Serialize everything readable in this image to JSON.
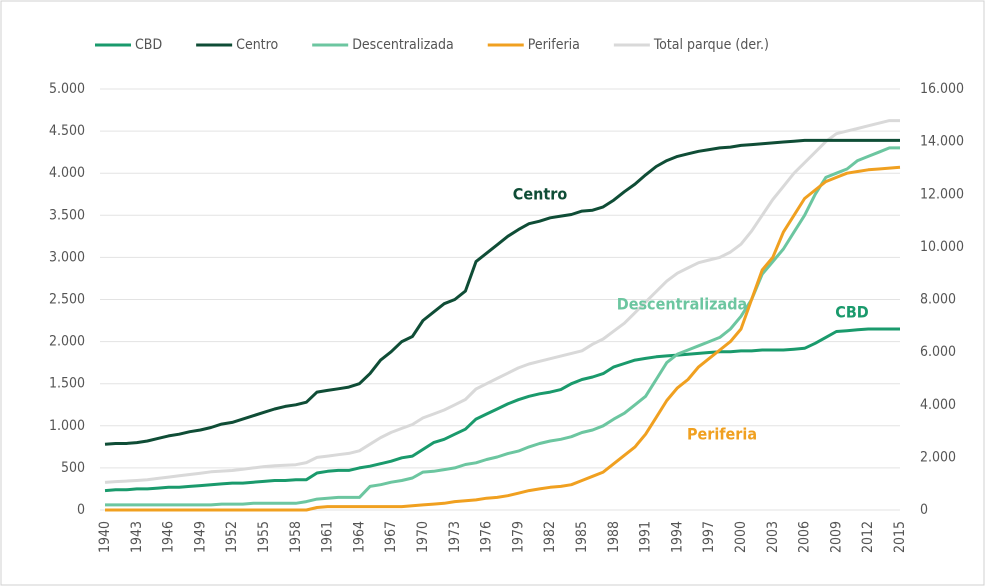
{
  "chart_data": {
    "type": "line",
    "x": [
      1940,
      1941,
      1942,
      1943,
      1944,
      1945,
      1946,
      1947,
      1948,
      1949,
      1950,
      1951,
      1952,
      1953,
      1954,
      1955,
      1956,
      1957,
      1958,
      1959,
      1960,
      1961,
      1962,
      1963,
      1964,
      1965,
      1966,
      1967,
      1968,
      1969,
      1970,
      1971,
      1972,
      1973,
      1974,
      1975,
      1976,
      1977,
      1978,
      1979,
      1980,
      1981,
      1982,
      1983,
      1984,
      1985,
      1986,
      1987,
      1988,
      1989,
      1990,
      1991,
      1992,
      1993,
      1994,
      1995,
      1996,
      1997,
      1998,
      1999,
      2000,
      2001,
      2002,
      2003,
      2004,
      2005,
      2006,
      2007,
      2008,
      2009,
      2010,
      2011,
      2012,
      2013,
      2014,
      2015
    ],
    "xlim": [
      1940,
      2015
    ],
    "xticks": [
      1940,
      1943,
      1946,
      1949,
      1952,
      1955,
      1958,
      1961,
      1964,
      1967,
      1970,
      1973,
      1976,
      1979,
      1982,
      1985,
      1988,
      1991,
      1994,
      1997,
      2000,
      2003,
      2006,
      2009,
      2012,
      2015
    ],
    "ylim": [
      0,
      5000
    ],
    "yticks": [
      0,
      500,
      {
        "value": 1000,
        "label": "1.000"
      },
      {
        "value": 1500,
        "label": "1.500"
      },
      {
        "value": 2000,
        "label": "2.000"
      },
      {
        "value": 2500,
        "label": "2.500"
      },
      {
        "value": 3000,
        "label": "3.000"
      },
      {
        "value": 3500,
        "label": "3.500"
      },
      {
        "value": 4000,
        "label": "4.000"
      },
      {
        "value": 4500,
        "label": "4.500"
      },
      {
        "value": 5000,
        "label": "5.000"
      }
    ],
    "y2lim": [
      0,
      16000
    ],
    "y2ticks": [
      0,
      {
        "value": 2000,
        "label": "2.000"
      },
      {
        "value": 4000,
        "label": "4.000"
      },
      {
        "value": 6000,
        "label": "6.000"
      },
      {
        "value": 8000,
        "label": "8.000"
      },
      {
        "value": 10000,
        "label": "10.000"
      },
      {
        "value": 12000,
        "label": "12.000"
      },
      {
        "value": 14000,
        "label": "14.000"
      },
      {
        "value": 16000,
        "label": "16.000"
      }
    ],
    "grid": true,
    "legend": "top",
    "series": [
      {
        "name": "CBD",
        "color": "#1a9a6c",
        "values": [
          230,
          240,
          240,
          250,
          250,
          260,
          270,
          270,
          280,
          290,
          300,
          310,
          320,
          320,
          330,
          340,
          350,
          350,
          360,
          360,
          440,
          460,
          470,
          470,
          500,
          520,
          550,
          580,
          620,
          640,
          720,
          800,
          840,
          900,
          960,
          1080,
          1140,
          1200,
          1260,
          1310,
          1350,
          1380,
          1400,
          1430,
          1500,
          1550,
          1580,
          1620,
          1700,
          1740,
          1780,
          1800,
          1820,
          1830,
          1840,
          1850,
          1860,
          1870,
          1880,
          1880,
          1890,
          1890,
          1900,
          1900,
          1900,
          1910,
          1920,
          1980,
          2050,
          2120,
          2130,
          2140,
          2150,
          2150,
          2150,
          2150
        ]
      },
      {
        "name": "Centro",
        "color": "#0f4d36",
        "values": [
          780,
          790,
          790,
          800,
          820,
          850,
          880,
          900,
          930,
          950,
          980,
          1020,
          1040,
          1080,
          1120,
          1160,
          1200,
          1230,
          1250,
          1280,
          1400,
          1420,
          1440,
          1460,
          1500,
          1620,
          1780,
          1880,
          2000,
          2060,
          2250,
          2350,
          2450,
          2500,
          2600,
          2950,
          3050,
          3150,
          3250,
          3330,
          3400,
          3430,
          3470,
          3490,
          3510,
          3550,
          3560,
          3600,
          3680,
          3780,
          3870,
          3980,
          4080,
          4150,
          4200,
          4230,
          4260,
          4280,
          4300,
          4310,
          4330,
          4340,
          4350,
          4360,
          4370,
          4380,
          4390,
          4390,
          4390,
          4390,
          4390,
          4390,
          4390,
          4390,
          4390,
          4390
        ]
      },
      {
        "name": "Descentralizada",
        "color": "#6cc6a0",
        "values": [
          60,
          60,
          60,
          60,
          60,
          60,
          60,
          60,
          60,
          60,
          60,
          70,
          70,
          70,
          80,
          80,
          80,
          80,
          80,
          100,
          130,
          140,
          150,
          150,
          150,
          280,
          300,
          330,
          350,
          380,
          450,
          460,
          480,
          500,
          540,
          560,
          600,
          630,
          670,
          700,
          750,
          790,
          820,
          840,
          870,
          920,
          950,
          1000,
          1080,
          1150,
          1250,
          1350,
          1550,
          1750,
          1850,
          1900,
          1950,
          2000,
          2050,
          2150,
          2300,
          2500,
          2800,
          2950,
          3100,
          3300,
          3500,
          3750,
          3950,
          4000,
          4050,
          4150,
          4200,
          4250,
          4300,
          4300
        ]
      },
      {
        "name": "Periferia",
        "color": "#f0a020",
        "values": [
          0,
          0,
          0,
          0,
          0,
          0,
          0,
          0,
          0,
          0,
          0,
          0,
          0,
          0,
          0,
          0,
          0,
          0,
          0,
          0,
          30,
          40,
          40,
          40,
          40,
          40,
          40,
          40,
          40,
          50,
          60,
          70,
          80,
          100,
          110,
          120,
          140,
          150,
          170,
          200,
          230,
          250,
          270,
          280,
          300,
          350,
          400,
          450,
          550,
          650,
          750,
          900,
          1100,
          1300,
          1450,
          1550,
          1700,
          1800,
          1900,
          2000,
          2150,
          2500,
          2850,
          3000,
          3300,
          3500,
          3700,
          3800,
          3900,
          3950,
          4000,
          4020,
          4040,
          4050,
          4060,
          4070
        ]
      },
      {
        "name": "Total parque (der.)",
        "color": "#d9d9d9",
        "axis": "y2",
        "values": [
          1050,
          1080,
          1100,
          1120,
          1150,
          1200,
          1250,
          1300,
          1350,
          1400,
          1450,
          1480,
          1500,
          1550,
          1600,
          1650,
          1680,
          1700,
          1720,
          1800,
          2000,
          2050,
          2100,
          2150,
          2250,
          2500,
          2750,
          2950,
          3100,
          3250,
          3500,
          3650,
          3800,
          4000,
          4200,
          4600,
          4800,
          5000,
          5200,
          5400,
          5550,
          5650,
          5750,
          5850,
          5950,
          6050,
          6300,
          6500,
          6800,
          7100,
          7500,
          7900,
          8300,
          8700,
          9000,
          9200,
          9400,
          9500,
          9600,
          9800,
          10100,
          10600,
          11200,
          11800,
          12300,
          12800,
          13200,
          13600,
          14000,
          14300,
          14400,
          14500,
          14600,
          14700,
          14800,
          14800
        ]
      }
    ],
    "annotations": [
      "Centro",
      "Descentralizada",
      "CBD",
      "Periferia"
    ]
  }
}
